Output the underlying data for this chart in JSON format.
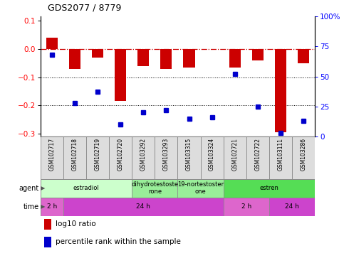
{
  "title": "GDS2077 / 8779",
  "samples": [
    "GSM102717",
    "GSM102718",
    "GSM102719",
    "GSM102720",
    "GSM103292",
    "GSM103293",
    "GSM103315",
    "GSM103324",
    "GSM102721",
    "GSM102722",
    "GSM103111",
    "GSM103286"
  ],
  "log10_ratio": [
    0.04,
    -0.07,
    -0.03,
    -0.185,
    -0.06,
    -0.07,
    -0.065,
    0.0,
    -0.065,
    -0.04,
    -0.295,
    -0.05
  ],
  "percentile_rank": [
    68,
    28,
    37,
    10,
    20,
    22,
    15,
    16,
    52,
    25,
    3,
    13
  ],
  "bar_color": "#cc0000",
  "dot_color": "#0000cc",
  "hline_color": "#cc0000",
  "ylim": [
    -0.31,
    0.115
  ],
  "y2lim": [
    0,
    100
  ],
  "yticks": [
    0.1,
    0.0,
    -0.1,
    -0.2,
    -0.3
  ],
  "y2ticks": [
    100,
    75,
    50,
    25,
    0
  ],
  "agent_groups": [
    {
      "label": "estradiol",
      "start": 0,
      "end": 4,
      "color": "#ccffcc"
    },
    {
      "label": "dihydrotestoste\nrone",
      "start": 4,
      "end": 6,
      "color": "#99ee99"
    },
    {
      "label": "19-nortestoster\none",
      "start": 6,
      "end": 8,
      "color": "#99ee99"
    },
    {
      "label": "estren",
      "start": 8,
      "end": 12,
      "color": "#55dd55"
    }
  ],
  "time_groups": [
    {
      "label": "2 h",
      "start": 0,
      "end": 1,
      "color": "#dd66cc"
    },
    {
      "label": "24 h",
      "start": 1,
      "end": 8,
      "color": "#cc44cc"
    },
    {
      "label": "2 h",
      "start": 8,
      "end": 10,
      "color": "#dd66cc"
    },
    {
      "label": "24 h",
      "start": 10,
      "end": 12,
      "color": "#cc44cc"
    }
  ],
  "legend_bar_label": "log10 ratio",
  "legend_dot_label": "percentile rank within the sample",
  "sample_box_color": "#dddddd",
  "sample_box_edge": "#888888"
}
